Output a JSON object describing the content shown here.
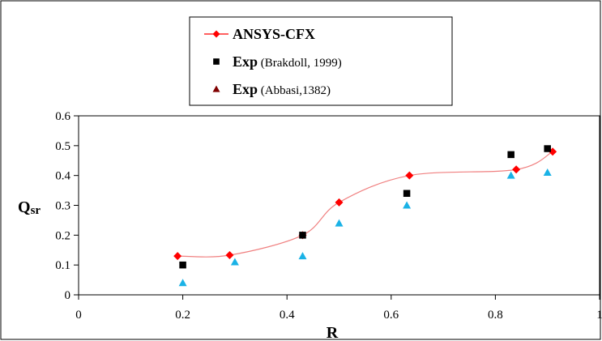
{
  "chart_data": {
    "type": "scatter",
    "xlabel": "R",
    "ylabel_main": "Q",
    "ylabel_sub": "sr",
    "xlim": [
      0,
      1
    ],
    "ylim": [
      0,
      0.6
    ],
    "xticks": [
      0,
      0.2,
      0.4,
      0.6,
      0.8,
      1
    ],
    "xtick_labels": [
      "0",
      "0.2",
      "0.4",
      "0.6",
      "0.8",
      "1"
    ],
    "yticks": [
      0,
      0.1,
      0.2,
      0.3,
      0.4,
      0.5,
      0.6
    ],
    "ytick_labels": [
      "0",
      "0.1",
      "0.2",
      "0.3",
      "0.4",
      "0.5",
      "0.6"
    ],
    "grid": false,
    "legend_position": "top-center",
    "series": [
      {
        "key": "cfx",
        "legend_bold": "ANSYS-CFX",
        "legend_rest": "",
        "marker": "diamond",
        "line": true,
        "color": "#ff0000",
        "line_color": "#f08080",
        "x": [
          0.19,
          0.29,
          0.43,
          0.5,
          0.635,
          0.84,
          0.91
        ],
        "y": [
          0.13,
          0.133,
          0.2,
          0.31,
          0.4,
          0.42,
          0.48
        ]
      },
      {
        "key": "brakdoll",
        "legend_bold": "Exp",
        "legend_rest": " (Brakdoll, 1999)",
        "marker": "square",
        "line": false,
        "color": "#000000",
        "x": [
          0.2,
          0.43,
          0.63,
          0.83,
          0.9
        ],
        "y": [
          0.1,
          0.2,
          0.34,
          0.47,
          0.49
        ]
      },
      {
        "key": "abbasi",
        "legend_bold": "Exp",
        "legend_rest": " (Abbasi,1382)",
        "marker": "triangle",
        "line": false,
        "color": "#1ab2e6",
        "legend_color": "#800000",
        "x": [
          0.2,
          0.3,
          0.43,
          0.5,
          0.63,
          0.83,
          0.9
        ],
        "y": [
          0.04,
          0.11,
          0.13,
          0.24,
          0.3,
          0.4,
          0.41
        ]
      }
    ]
  }
}
